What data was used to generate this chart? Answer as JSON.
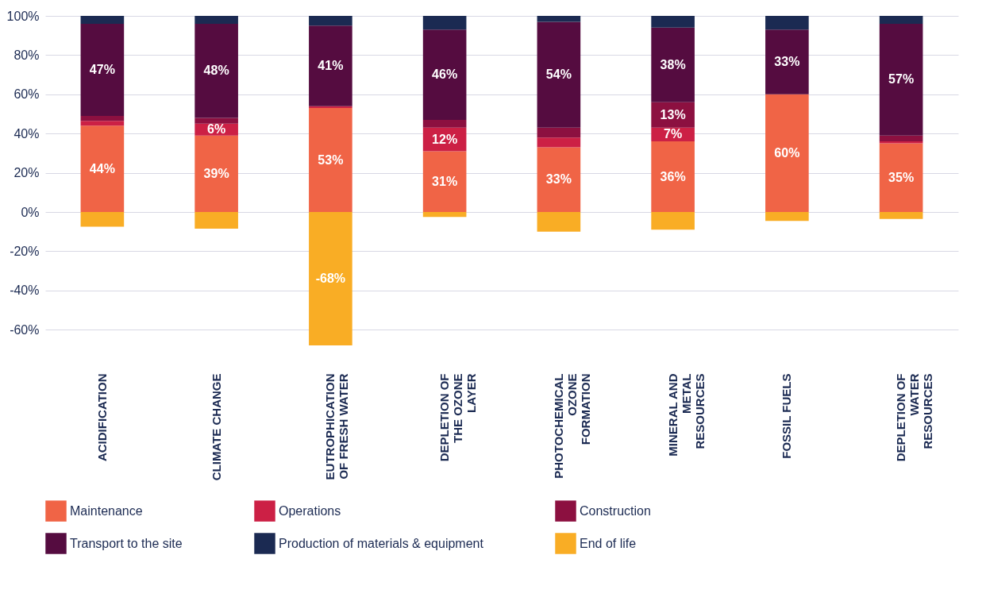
{
  "chart_data": {
    "type": "bar",
    "stacked": true,
    "categories": [
      "ACIDIFICATION",
      "CLIMATE CHANGE",
      "EUTROPHICATION OF FRESH WATER",
      "DEPLETION OF THE OZONE LAYER",
      "PHOTOCHEMICAL OZONE FORMATION",
      "MINERAL AND METAL RESOURCES",
      "FOSSIL FUELS",
      "DEPLETION OF WATER RESOURCES"
    ],
    "series": [
      {
        "name": "Maintenance",
        "color": "#f06446",
        "values": [
          44,
          39,
          53,
          31,
          33,
          36,
          60,
          35
        ],
        "value_labels": [
          "44%",
          "39%",
          "53%",
          "31%",
          "33%",
          "36%",
          "60%",
          "35%"
        ]
      },
      {
        "name": "Operations",
        "color": "#cc2045",
        "values": [
          2.5,
          6,
          1,
          12,
          5,
          7,
          0,
          1
        ],
        "value_labels": [
          null,
          "6%",
          null,
          "12%",
          null,
          "7%",
          null,
          null
        ]
      },
      {
        "name": "Construction",
        "color": "#8c1040",
        "values": [
          2.5,
          3,
          0,
          4,
          5,
          13,
          0,
          3
        ],
        "value_labels": [
          null,
          null,
          null,
          null,
          null,
          "13%",
          null,
          null
        ]
      },
      {
        "name": "Transport to the site",
        "color": "#550c40",
        "values": [
          47,
          48,
          41,
          46,
          54,
          38,
          33,
          57
        ],
        "value_labels": [
          "47%",
          "48%",
          "41%",
          "46%",
          "54%",
          "38%",
          "33%",
          "57%"
        ]
      },
      {
        "name": "Production of materials & equipment",
        "color": "#1b2a52",
        "values": [
          4,
          4,
          5,
          7,
          3,
          6,
          7,
          4
        ]
      },
      {
        "name": "End of life",
        "color": "#f9ad25",
        "values": [
          -7.5,
          -8.5,
          -68,
          -2.5,
          -10,
          -9,
          -4.5,
          -3.5
        ],
        "value_labels": [
          null,
          null,
          "-68%",
          null,
          null,
          null,
          null,
          null
        ]
      }
    ],
    "ylim": [
      -68,
      100
    ],
    "yticks": [
      {
        "value": -60,
        "label": "-60%"
      },
      {
        "value": -40,
        "label": "-40%"
      },
      {
        "value": -20,
        "label": "-20%"
      },
      {
        "value": 0,
        "label": "0%"
      },
      {
        "value": 20,
        "label": "20%"
      },
      {
        "value": 40,
        "label": "40%"
      },
      {
        "value": 60,
        "label": "60%"
      },
      {
        "value": 80,
        "label": "80%"
      },
      {
        "value": 100,
        "label": "100%"
      }
    ],
    "grid": "y",
    "legend": "bottom"
  }
}
